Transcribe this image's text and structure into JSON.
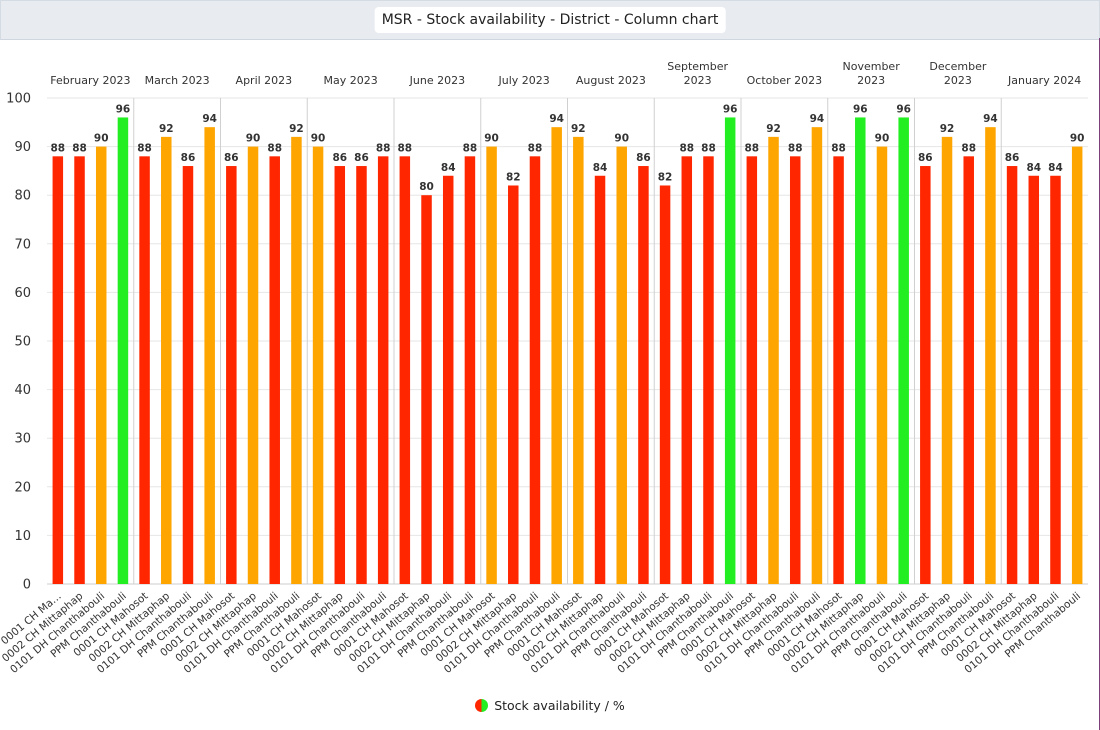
{
  "title": "MSR - Stock availability - District - Column chart",
  "legend": {
    "label": "Stock availability / %",
    "colors": [
      "#ff2600",
      "#22ee22"
    ]
  },
  "colors": {
    "red": "#ff2600",
    "orange": "#ffa500",
    "green": "#22ee22",
    "grid": "#e6e6e6",
    "separator": "#d0d0d0"
  },
  "chart_data": {
    "type": "bar",
    "ylim": [
      0,
      100
    ],
    "yticks": [
      0,
      10,
      20,
      30,
      40,
      50,
      60,
      70,
      80,
      90,
      100
    ],
    "legend_position": "bottom",
    "series_name": "Stock availability / %",
    "groups": [
      {
        "label": [
          "February 2023"
        ],
        "bars": [
          {
            "name": "0001 CH Ma…",
            "value": 88,
            "status": "red"
          },
          {
            "name": "0002 CH Mittaphap",
            "value": 88,
            "status": "red"
          },
          {
            "name": "0101 DH Chanthabouli",
            "value": 90,
            "status": "orange"
          },
          {
            "name": "PPM Chanthabouli",
            "value": 96,
            "status": "green"
          }
        ]
      },
      {
        "label": [
          "March 2023"
        ],
        "bars": [
          {
            "name": "0001 CH Mahosot",
            "value": 88,
            "status": "red"
          },
          {
            "name": "0002 CH Mittaphap",
            "value": 92,
            "status": "orange"
          },
          {
            "name": "0101 DH Chanthabouli",
            "value": 86,
            "status": "red"
          },
          {
            "name": "PPM Chanthabouli",
            "value": 94,
            "status": "orange"
          }
        ]
      },
      {
        "label": [
          "April 2023"
        ],
        "bars": [
          {
            "name": "0001 CH Mahosot",
            "value": 86,
            "status": "red"
          },
          {
            "name": "0002 CH Mittaphap",
            "value": 90,
            "status": "orange"
          },
          {
            "name": "0101 DH Chanthabouli",
            "value": 88,
            "status": "red"
          },
          {
            "name": "PPM Chanthabouli",
            "value": 92,
            "status": "orange"
          }
        ]
      },
      {
        "label": [
          "May 2023"
        ],
        "bars": [
          {
            "name": "0001 CH Mahosot",
            "value": 90,
            "status": "orange"
          },
          {
            "name": "0002 CH Mittaphap",
            "value": 86,
            "status": "red"
          },
          {
            "name": "0101 DH Chanthabouli",
            "value": 86,
            "status": "red"
          },
          {
            "name": "PPM Chanthabouli",
            "value": 88,
            "status": "red"
          }
        ]
      },
      {
        "label": [
          "June 2023"
        ],
        "bars": [
          {
            "name": "0001 CH Mahosot",
            "value": 88,
            "status": "red"
          },
          {
            "name": "0002 CH Mittaphap",
            "value": 80,
            "status": "red"
          },
          {
            "name": "0101 DH Chanthabouli",
            "value": 84,
            "status": "red"
          },
          {
            "name": "PPM Chanthabouli",
            "value": 88,
            "status": "red"
          }
        ]
      },
      {
        "label": [
          "July 2023"
        ],
        "bars": [
          {
            "name": "0001 CH Mahosot",
            "value": 90,
            "status": "orange"
          },
          {
            "name": "0002 CH Mittaphap",
            "value": 82,
            "status": "red"
          },
          {
            "name": "0101 DH Chanthabouli",
            "value": 88,
            "status": "red"
          },
          {
            "name": "PPM Chanthabouli",
            "value": 94,
            "status": "orange"
          }
        ]
      },
      {
        "label": [
          "August 2023"
        ],
        "bars": [
          {
            "name": "0001 CH Mahosot",
            "value": 92,
            "status": "orange"
          },
          {
            "name": "0002 CH Mittaphap",
            "value": 84,
            "status": "red"
          },
          {
            "name": "0101 DH Chanthabouli",
            "value": 90,
            "status": "orange"
          },
          {
            "name": "PPM Chanthabouli",
            "value": 86,
            "status": "red"
          }
        ]
      },
      {
        "label": [
          "September",
          "2023"
        ],
        "bars": [
          {
            "name": "0001 CH Mahosot",
            "value": 82,
            "status": "red"
          },
          {
            "name": "0002 CH Mittaphap",
            "value": 88,
            "status": "red"
          },
          {
            "name": "0101 DH Chanthabouli",
            "value": 88,
            "status": "red"
          },
          {
            "name": "PPM Chanthabouli",
            "value": 96,
            "status": "green"
          }
        ]
      },
      {
        "label": [
          "October 2023"
        ],
        "bars": [
          {
            "name": "0001 CH Mahosot",
            "value": 88,
            "status": "red"
          },
          {
            "name": "0002 CH Mittaphap",
            "value": 92,
            "status": "orange"
          },
          {
            "name": "0101 DH Chanthabouli",
            "value": 88,
            "status": "red"
          },
          {
            "name": "PPM Chanthabouli",
            "value": 94,
            "status": "orange"
          }
        ]
      },
      {
        "label": [
          "November",
          "2023"
        ],
        "bars": [
          {
            "name": "0001 CH Mahosot",
            "value": 88,
            "status": "red"
          },
          {
            "name": "0002 CH Mittaphap",
            "value": 96,
            "status": "green"
          },
          {
            "name": "0101 DH Chanthabouli",
            "value": 90,
            "status": "orange"
          },
          {
            "name": "PPM Chanthabouli",
            "value": 96,
            "status": "green"
          }
        ]
      },
      {
        "label": [
          "December",
          "2023"
        ],
        "bars": [
          {
            "name": "0001 CH Mahosot",
            "value": 86,
            "status": "red"
          },
          {
            "name": "0002 CH Mittaphap",
            "value": 92,
            "status": "orange"
          },
          {
            "name": "0101 DH Chanthabouli",
            "value": 88,
            "status": "red"
          },
          {
            "name": "PPM Chanthabouli",
            "value": 94,
            "status": "orange"
          }
        ]
      },
      {
        "label": [
          "January 2024"
        ],
        "bars": [
          {
            "name": "0001 CH Mahosot",
            "value": 86,
            "status": "red"
          },
          {
            "name": "0002 CH Mittaphap",
            "value": 84,
            "status": "red"
          },
          {
            "name": "0101 DH Chanthabouli",
            "value": 84,
            "status": "red"
          },
          {
            "name": "PPM Chanthabouli",
            "value": 90,
            "status": "orange"
          }
        ]
      }
    ]
  }
}
